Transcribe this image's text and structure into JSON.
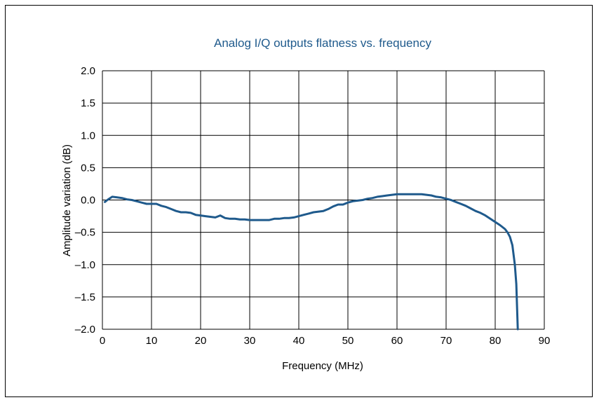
{
  "chart_data": {
    "type": "line",
    "title": "Analog I/Q outputs flatness vs. frequency",
    "xlabel": "Frequency (MHz)",
    "ylabel": "Amplitude variation (dB)",
    "xlim": [
      0,
      90
    ],
    "ylim": [
      -2.0,
      2.0
    ],
    "x_ticks": [
      "0",
      "10",
      "20",
      "30",
      "40",
      "50",
      "60",
      "70",
      "80",
      "90"
    ],
    "y_ticks": [
      "2.0",
      "1.5",
      "1.0",
      "0.5",
      "0.0",
      "–0.5",
      "–1.0",
      "–1.5",
      "–2.0"
    ],
    "grid": true,
    "colors": {
      "line": "#1f5a8c",
      "title": "#1f5a8c",
      "grid": "#000000"
    },
    "series": [
      {
        "x": [
          0.5,
          1,
          2,
          3,
          4,
          5,
          6,
          7,
          8,
          9,
          10,
          11,
          12,
          13,
          14,
          15,
          16,
          17,
          18,
          19,
          20,
          21,
          22,
          23,
          24,
          24.5,
          25,
          26,
          27,
          28,
          29,
          30,
          31,
          32,
          33,
          34,
          35,
          36,
          37,
          38,
          39,
          40,
          41,
          42,
          43,
          44,
          45,
          46,
          47,
          48,
          49,
          50,
          51,
          52,
          53,
          54,
          55,
          56,
          57,
          58,
          59,
          60,
          61,
          62,
          63,
          64,
          65,
          66,
          67,
          68,
          69,
          70,
          71,
          72,
          73,
          74,
          75,
          76,
          77,
          78,
          79,
          80,
          81,
          82,
          82.5,
          83,
          83.5,
          84,
          84.3,
          84.6
        ],
        "y": [
          -0.03,
          0.0,
          0.05,
          0.04,
          0.03,
          0.01,
          0.0,
          -0.02,
          -0.04,
          -0.06,
          -0.06,
          -0.06,
          -0.09,
          -0.11,
          -0.14,
          -0.17,
          -0.19,
          -0.19,
          -0.2,
          -0.23,
          -0.24,
          -0.25,
          -0.26,
          -0.27,
          -0.24,
          -0.26,
          -0.28,
          -0.29,
          -0.29,
          -0.3,
          -0.3,
          -0.31,
          -0.31,
          -0.31,
          -0.31,
          -0.31,
          -0.29,
          -0.29,
          -0.28,
          -0.28,
          -0.27,
          -0.25,
          -0.23,
          -0.21,
          -0.19,
          -0.18,
          -0.17,
          -0.14,
          -0.1,
          -0.07,
          -0.07,
          -0.04,
          -0.02,
          -0.01,
          0.0,
          0.02,
          0.03,
          0.05,
          0.06,
          0.07,
          0.08,
          0.09,
          0.09,
          0.09,
          0.09,
          0.09,
          0.09,
          0.08,
          0.07,
          0.05,
          0.04,
          0.02,
          0.0,
          -0.03,
          -0.06,
          -0.09,
          -0.13,
          -0.17,
          -0.2,
          -0.24,
          -0.29,
          -0.34,
          -0.39,
          -0.45,
          -0.5,
          -0.57,
          -0.7,
          -1.0,
          -1.3,
          -2.0
        ]
      }
    ]
  }
}
